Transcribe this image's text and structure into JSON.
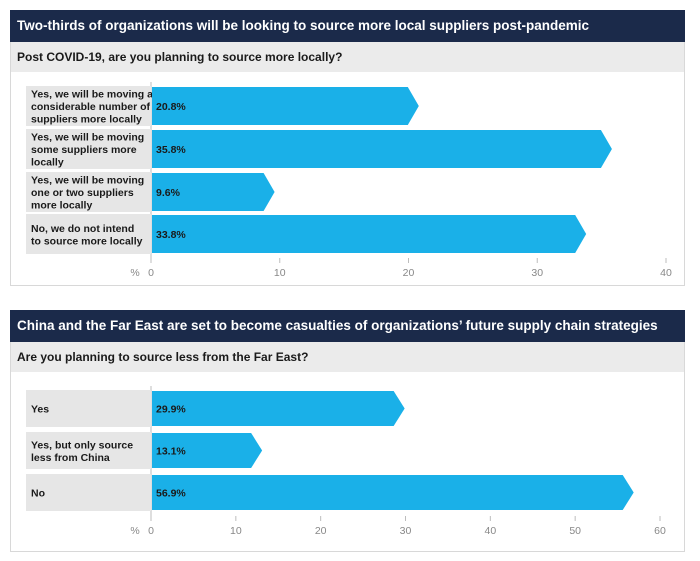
{
  "colors": {
    "header_bg": "#1b2a4a",
    "question_bg": "#ebebeb",
    "bar": "#1ab0e8",
    "category_bg": "#e6e6e6"
  },
  "chart_data": [
    {
      "type": "bar",
      "orientation": "horizontal",
      "title": "Two-thirds of organizations will be looking to source more local suppliers post-pandemic",
      "question": "Post COVID-19, are you planning to source more locally?",
      "categories": [
        [
          "Yes, we will be moving a",
          "considerable number of",
          "suppliers more locally"
        ],
        [
          "Yes, we will be moving",
          "some suppliers more",
          "locally"
        ],
        [
          "Yes, we will be moving",
          "one or two suppliers",
          "more locally"
        ],
        [
          "No, we do not intend",
          "to source more locally"
        ]
      ],
      "values": [
        20.8,
        35.8,
        9.6,
        33.8
      ],
      "value_labels": [
        "20.8%",
        "35.8%",
        "9.6%",
        "33.8%"
      ],
      "xlabel": "%",
      "xlim": [
        0,
        40
      ],
      "ticks": [
        "0",
        "10",
        "20",
        "30",
        "40"
      ]
    },
    {
      "type": "bar",
      "orientation": "horizontal",
      "title": "China and the Far East are set to become casualties of organizations’ future supply chain strategies",
      "question": "Are you planning to source less from the Far East?",
      "categories": [
        [
          "Yes"
        ],
        [
          "Yes, but only source",
          "less from China"
        ],
        [
          "No"
        ]
      ],
      "values": [
        29.9,
        13.1,
        56.9
      ],
      "value_labels": [
        "29.9%",
        "13.1%",
        "56.9%"
      ],
      "xlabel": "%",
      "xlim": [
        0,
        60
      ],
      "ticks": [
        "0",
        "10",
        "20",
        "30",
        "40",
        "50",
        "60"
      ]
    }
  ]
}
